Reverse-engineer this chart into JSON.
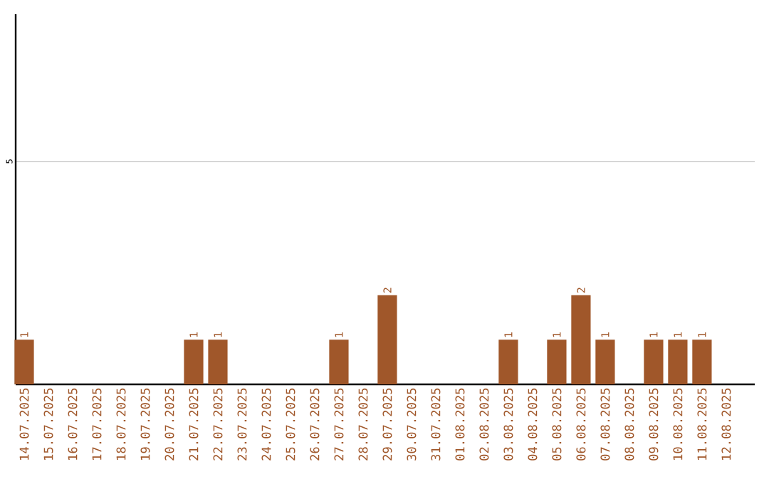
{
  "chart_data": {
    "type": "bar",
    "categories": [
      "14.07.2025",
      "15.07.2025",
      "16.07.2025",
      "17.07.2025",
      "18.07.2025",
      "19.07.2025",
      "20.07.2025",
      "21.07.2025",
      "22.07.2025",
      "23.07.2025",
      "24.07.2025",
      "25.07.2025",
      "26.07.2025",
      "27.07.2025",
      "28.07.2025",
      "29.07.2025",
      "30.07.2025",
      "31.07.2025",
      "01.08.2025",
      "02.08.2025",
      "03.08.2025",
      "04.08.2025",
      "05.08.2025",
      "06.08.2025",
      "07.08.2025",
      "08.08.2025",
      "09.08.2025",
      "10.08.2025",
      "11.08.2025",
      "12.08.2025"
    ],
    "values": [
      1,
      0,
      0,
      0,
      0,
      0,
      0,
      1,
      1,
      0,
      0,
      0,
      0,
      1,
      0,
      2,
      0,
      0,
      0,
      0,
      1,
      0,
      1,
      2,
      1,
      0,
      1,
      1,
      1,
      0
    ],
    "value_labels": [
      "1",
      null,
      null,
      null,
      null,
      null,
      null,
      "1",
      "1",
      null,
      null,
      null,
      null,
      "1",
      null,
      "2",
      null,
      null,
      null,
      null,
      "1",
      null,
      "1",
      "2",
      "1",
      null,
      "1",
      "1",
      "1",
      null
    ],
    "color": "#a0572a",
    "ylim": [
      0,
      8.3
    ],
    "yticks": [
      5
    ],
    "grid": "y"
  }
}
